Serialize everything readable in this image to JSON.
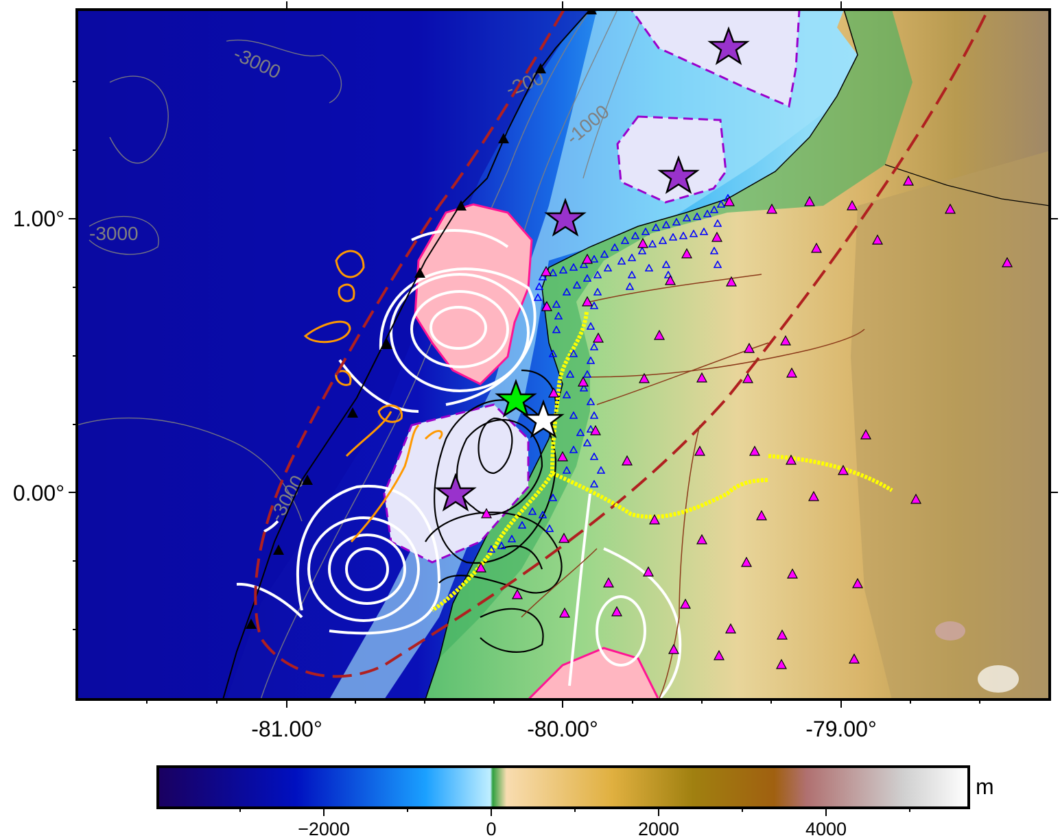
{
  "map": {
    "x_ticks": [
      "-81.00°",
      "-80.00°",
      "-79.00°"
    ],
    "y_ticks": [
      "1.00°",
      "0.00°"
    ],
    "contour_labels": [
      "-3000",
      "-3000",
      "-1000",
      "-200",
      "-3000"
    ]
  },
  "colorbar": {
    "unit": "m",
    "ticks": [
      "−2000",
      "0",
      "2000",
      "4000"
    ],
    "colors": [
      "#1a0060",
      "#0010c0",
      "#1aa0ff",
      "#bfeeff",
      "#30a040",
      "#f8dcb0",
      "#e0b040",
      "#a08010",
      "#a06010",
      "#b07070",
      "#d0d0d0",
      "#ffffff"
    ]
  },
  "colors": {
    "ocean_deep": "#0a0aa8",
    "ocean_shelf": "#4fc8f0",
    "land_low": "#3fb060",
    "land_high": "#d8b870",
    "trench_line": "#000000",
    "dashed_line": "#b02020",
    "seismic_zone": "#ffb6c1",
    "aftershock_zone": "#e6e6fa",
    "contour_white": "#ffffff",
    "contour_black": "#000000",
    "contour_orange": "#ff9900",
    "stations_magenta": "#ff00ff",
    "stations_blue": "#0000ff",
    "yellow_track": "#ffff00",
    "star_purple": "#9932cc",
    "star_green": "#00ee00",
    "star_white": "#ffffff"
  }
}
